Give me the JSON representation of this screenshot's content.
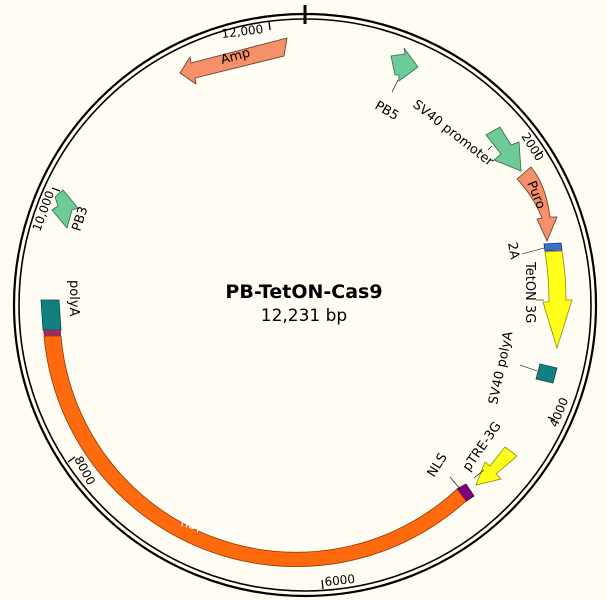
{
  "plasmid": {
    "name": "PB-TetON-Cas9",
    "length_label": "12,231 bp"
  },
  "ticks": [
    {
      "label": "12,000"
    },
    {
      "label": "2000"
    },
    {
      "label": "4000"
    },
    {
      "label": "6000"
    },
    {
      "label": "8000"
    },
    {
      "label": "10,000"
    }
  ],
  "features": [
    {
      "label": "Amp",
      "color": "#f5906a",
      "type": "arrow-ccw"
    },
    {
      "label": "PB5",
      "color": "#6dcb9a",
      "type": "arrow"
    },
    {
      "label": "SV40 promoter",
      "color": "#6dcb9a",
      "type": "arrow"
    },
    {
      "label": "Puro",
      "color": "#f5906a",
      "type": "arrow-cw"
    },
    {
      "label": "2A",
      "color": "#3b6fd0",
      "type": "block"
    },
    {
      "label": "TetON 3G",
      "color": "#ffff1a",
      "type": "arrow-cw"
    },
    {
      "label": "SV40 polyA",
      "color": "#138080",
      "type": "block"
    },
    {
      "label": "pTRE-3G",
      "color": "#ffff1a",
      "type": "arrow"
    },
    {
      "label": "NLS",
      "color": "#800080",
      "type": "block"
    },
    {
      "label": "hSpCas9",
      "color": "#ff6a0f",
      "type": "arc"
    },
    {
      "label": "polyA",
      "color": "#138080",
      "type": "block"
    },
    {
      "label": "PB3",
      "color": "#6dcb9a",
      "type": "arrow"
    }
  ]
}
